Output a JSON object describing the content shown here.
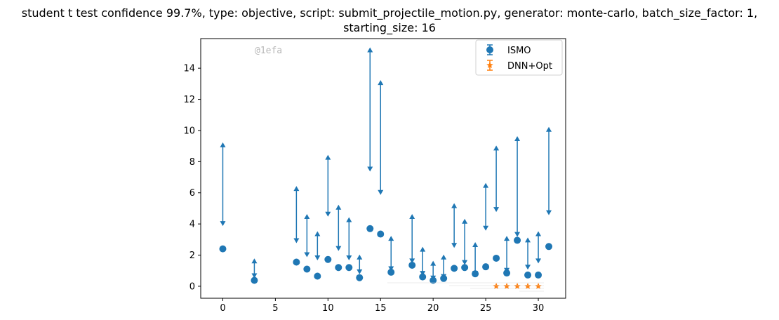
{
  "chart_data": {
    "type": "scatter",
    "title_line1": "student t test confidence 99.7%, type: objective, script: submit_projectile_motion.py, generator: monte-carlo, batch_size_factor: 1,",
    "title_line2": "starting_size: 16",
    "xlabel": "",
    "ylabel": "",
    "xlim": [
      -2.1,
      32.6
    ],
    "ylim": [
      -0.77,
      15.9
    ],
    "xticks": [
      0,
      5,
      10,
      15,
      20,
      25,
      30
    ],
    "yticks": [
      0,
      2,
      4,
      6,
      8,
      10,
      12,
      14
    ],
    "grid": false,
    "legend": "top-right",
    "watermark": "@1efa",
    "series": [
      {
        "name": "ISMO",
        "color": "#1f77b4",
        "marker": "circle",
        "points": [
          {
            "x": 0,
            "y": 2.4,
            "lo": 4.0,
            "hi": 9.1
          },
          {
            "x": 3,
            "y": 0.38,
            "lo": 0.65,
            "hi": 1.65
          },
          {
            "x": 7,
            "y": 1.55,
            "lo": 2.9,
            "hi": 6.3
          },
          {
            "x": 8,
            "y": 1.1,
            "lo": 2.0,
            "hi": 4.5
          },
          {
            "x": 9,
            "y": 0.65,
            "lo": 1.8,
            "hi": 3.4
          },
          {
            "x": 10,
            "y": 1.72,
            "lo": 4.6,
            "hi": 8.3
          },
          {
            "x": 11,
            "y": 1.2,
            "lo": 2.4,
            "hi": 5.1
          },
          {
            "x": 12,
            "y": 1.2,
            "lo": 1.8,
            "hi": 4.3
          },
          {
            "x": 13,
            "y": 0.55,
            "lo": 0.9,
            "hi": 1.9
          },
          {
            "x": 14,
            "y": 3.7,
            "lo": 7.5,
            "hi": 15.2
          },
          {
            "x": 15,
            "y": 3.35,
            "lo": 6.0,
            "hi": 13.1
          },
          {
            "x": 16,
            "y": 0.9,
            "lo": 1.1,
            "hi": 3.1
          },
          {
            "x": 18,
            "y": 1.35,
            "lo": 1.6,
            "hi": 4.5
          },
          {
            "x": 19,
            "y": 0.6,
            "lo": 0.8,
            "hi": 2.4
          },
          {
            "x": 20,
            "y": 0.38,
            "lo": 0.5,
            "hi": 1.5
          },
          {
            "x": 21,
            "y": 0.5,
            "lo": 0.6,
            "hi": 1.9
          },
          {
            "x": 22,
            "y": 1.15,
            "lo": 2.6,
            "hi": 5.2
          },
          {
            "x": 23,
            "y": 1.2,
            "lo": 1.5,
            "hi": 4.2
          },
          {
            "x": 24,
            "y": 0.8,
            "lo": 0.8,
            "hi": 2.7
          },
          {
            "x": 25,
            "y": 1.25,
            "lo": 3.7,
            "hi": 6.5
          },
          {
            "x": 26,
            "y": 1.8,
            "lo": 4.9,
            "hi": 8.9
          },
          {
            "x": 27,
            "y": 0.85,
            "lo": 1.0,
            "hi": 3.1
          },
          {
            "x": 28,
            "y": 2.95,
            "lo": 3.3,
            "hi": 9.5
          },
          {
            "x": 29,
            "y": 0.72,
            "lo": 1.2,
            "hi": 3.0
          },
          {
            "x": 30,
            "y": 0.72,
            "lo": 1.6,
            "hi": 3.4
          },
          {
            "x": 31,
            "y": 2.55,
            "lo": 4.7,
            "hi": 10.1
          }
        ]
      },
      {
        "name": "DNN+Opt",
        "color": "#ff7f0e",
        "marker": "star",
        "points": [
          {
            "x": 26,
            "y": 0.0
          },
          {
            "x": 27,
            "y": 0.0
          },
          {
            "x": 28,
            "y": 0.0
          },
          {
            "x": 29,
            "y": 0.0
          },
          {
            "x": 30,
            "y": 0.0
          }
        ]
      }
    ]
  }
}
